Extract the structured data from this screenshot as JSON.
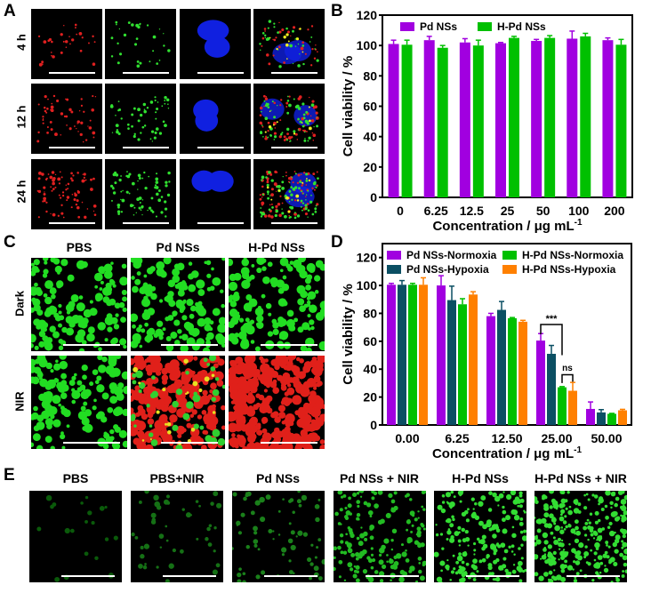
{
  "panels": {
    "a": "A",
    "b": "B",
    "c": "C",
    "d": "D",
    "e": "E"
  },
  "panel_a": {
    "rows": [
      "4 h",
      "12 h",
      "24 h"
    ],
    "channels": [
      "red",
      "green",
      "blue",
      "merge"
    ]
  },
  "panel_c": {
    "columns": [
      "PBS",
      "Pd NSs",
      "H-Pd NSs"
    ],
    "rows": [
      "Dark",
      "NIR"
    ]
  },
  "panel_e": {
    "columns": [
      "PBS",
      "PBS+NIR",
      "Pd NSs",
      "Pd NSs + NIR",
      "H-Pd NSs",
      "H-Pd NSs + NIR"
    ]
  },
  "colors": {
    "purple": "#a100e0",
    "green": "#00c000",
    "teal": "#0b4f63",
    "orange": "#ff8000"
  },
  "chart_data": [
    {
      "type": "bar",
      "title": "",
      "xlabel": "Concentration / μg mL",
      "xlabel_sup": "-1",
      "ylabel": "Cell viability / %",
      "categories": [
        "0",
        "6.25",
        "12.5",
        "25",
        "50",
        "100",
        "200"
      ],
      "ylim": [
        0,
        120
      ],
      "yticks": [
        "0",
        "20",
        "40",
        "60",
        "80",
        "100",
        "120"
      ],
      "legend": "top",
      "series": [
        {
          "name": "Pd NSs",
          "color": "#a100e0",
          "values": [
            101,
            103.5,
            102,
            101.5,
            103,
            104.5,
            103.5
          ],
          "errors": [
            2.5,
            2.5,
            2.5,
            0.5,
            1,
            5,
            1.5
          ]
        },
        {
          "name": "H-Pd NSs",
          "color": "#00c000",
          "values": [
            100.5,
            98.5,
            100,
            105,
            105,
            106,
            100.5
          ],
          "errors": [
            3,
            1.5,
            3.5,
            1,
            1.5,
            2,
            3.5
          ]
        }
      ]
    },
    {
      "type": "bar",
      "title": "",
      "xlabel": "Concentration / μg mL",
      "xlabel_sup": "-1",
      "ylabel": "Cell viability / %",
      "categories": [
        "0.00",
        "6.25",
        "12.50",
        "25.00",
        "50.00"
      ],
      "ylim": [
        0,
        130
      ],
      "yticks": [
        "0",
        "20",
        "40",
        "60",
        "80",
        "100",
        "120"
      ],
      "legend": "top",
      "series": [
        {
          "name": "Pd NSs-Normoxia",
          "color": "#a100e0",
          "values": [
            100.5,
            100,
            78,
            60.5,
            11.5
          ],
          "errors": [
            1,
            7,
            2,
            5,
            5
          ]
        },
        {
          "name": "Pd NSs-Hypoxia",
          "color": "#0b4f63",
          "values": [
            100.5,
            89.5,
            82.5,
            51,
            9
          ],
          "errors": [
            3,
            10,
            6,
            6,
            2
          ]
        },
        {
          "name": "H-Pd NSs-Normoxia",
          "color": "#00c000",
          "values": [
            100.5,
            86.5,
            76.5,
            27,
            8
          ],
          "errors": [
            1,
            4,
            0.5,
            0.5,
            0.3
          ]
        },
        {
          "name": "H-Pd NSs-Hypoxia",
          "color": "#ff8000",
          "values": [
            100.5,
            93.5,
            74,
            24.5,
            10.5
          ],
          "errors": [
            5,
            2,
            1,
            6,
            0.7
          ]
        }
      ],
      "annotations": [
        {
          "text": "***",
          "category": "25.00",
          "from_series": 0,
          "to_series": 2
        },
        {
          "text": "ns",
          "category": "25.00",
          "from_series": 2,
          "to_series": 3
        }
      ]
    }
  ]
}
